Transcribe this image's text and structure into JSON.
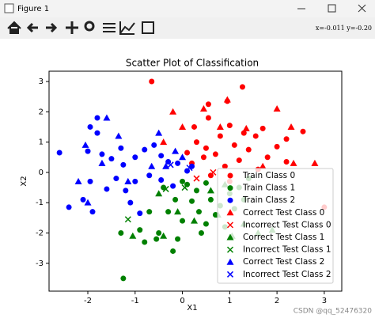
{
  "window_title": "Figure 1",
  "coordinates": "x=-0.011 y=-0.20",
  "watermark": "CSDN @qq_52476320",
  "chart_data": {
    "type": "scatter",
    "title": "Scatter Plot of Classification",
    "x_label": "X1",
    "y_label": "X2",
    "xlim": [
      -2.82,
      3.37
    ],
    "ylim": [
      -3.92,
      3.34
    ],
    "xticks": [
      -2,
      -1,
      0,
      1,
      2,
      3
    ],
    "yticks": [
      -3,
      -2,
      -1,
      0,
      1,
      2,
      3
    ],
    "legend": "lower right",
    "series": [
      {
        "name": "Train Class 0",
        "color": "#ff0000",
        "marker": "o",
        "x": [
          -0.65,
          1.27,
          0.55,
          0.95,
          0.55,
          0.25,
          0.8,
          1.0,
          1.3,
          1.55,
          1.7,
          2.2,
          2.55,
          0.3,
          0.5,
          0.7,
          1.1,
          1.4,
          1.8,
          2.0,
          0.2,
          0.45,
          0.9,
          1.2,
          1.6,
          2.2,
          0.1,
          3.0,
          0.6,
          1.0
        ],
        "y": [
          3.0,
          2.82,
          2.25,
          2.35,
          1.8,
          1.5,
          1.2,
          1.55,
          1.3,
          1.2,
          1.45,
          1.1,
          1.35,
          1.0,
          0.8,
          0.6,
          0.9,
          0.75,
          0.5,
          0.85,
          0.3,
          0.5,
          0.2,
          0.4,
          0.1,
          0.35,
          0.65,
          -1.15,
          -0.1,
          -0.3
        ]
      },
      {
        "name": "Train Class 1",
        "color": "#008000",
        "marker": "o",
        "x": [
          -1.25,
          -1.3,
          -0.9,
          -0.3,
          -0.15,
          0.1,
          0.3,
          0.5,
          0.6,
          0.8,
          1.0,
          0.35,
          0.0,
          -0.5,
          -0.2,
          -0.55,
          0.5,
          0.7,
          1.2,
          1.1,
          0.2,
          -0.4,
          -0.8,
          1.4,
          0.9,
          0.0,
          -0.7,
          -0.1,
          0.4,
          1.3
        ],
        "y": [
          -3.5,
          -2.0,
          -1.9,
          -1.3,
          -0.9,
          -0.4,
          -0.6,
          -0.35,
          -0.9,
          -1.1,
          -0.7,
          -1.3,
          -1.6,
          -2.0,
          -2.6,
          -2.2,
          -1.7,
          -1.4,
          -0.5,
          -1.2,
          -0.95,
          -0.5,
          -2.3,
          -0.2,
          -1.8,
          -0.3,
          -1.3,
          -2.2,
          -2.0,
          -0.9
        ]
      },
      {
        "name": "Train Class 2",
        "color": "#0000ff",
        "marker": "o",
        "x": [
          -2.6,
          -1.8,
          -1.95,
          -1.8,
          -2.0,
          -1.7,
          -1.5,
          -1.3,
          -1.25,
          -1.0,
          -0.8,
          -0.6,
          -0.45,
          -0.3,
          -0.1,
          0.1,
          -1.95,
          -2.1,
          -1.9,
          -2.4,
          -1.6,
          -1.4,
          -1.2,
          -1.0,
          -0.7,
          -0.45,
          -0.9,
          -1.1,
          -0.2,
          0.2
        ],
        "y": [
          0.65,
          1.8,
          1.5,
          1.3,
          0.7,
          0.6,
          0.45,
          0.8,
          0.25,
          0.5,
          0.75,
          0.9,
          0.55,
          0.35,
          0.3,
          0.05,
          -0.3,
          -0.9,
          -1.3,
          -1.15,
          -0.55,
          -0.2,
          -0.6,
          -0.3,
          -0.1,
          -0.25,
          -1.35,
          -1.0,
          -0.45,
          0.2
        ]
      },
      {
        "name": "Correct Test Class 0",
        "color": "#ff0000",
        "marker": "^",
        "x": [
          0.0,
          -0.4,
          0.45,
          0.95,
          1.35,
          2.0,
          2.3,
          2.35,
          2.8,
          -0.2,
          1.7,
          0.8
        ],
        "y": [
          1.5,
          1.0,
          2.1,
          2.4,
          1.45,
          2.1,
          1.5,
          0.3,
          0.3,
          2.0,
          0.2,
          1.5
        ]
      },
      {
        "name": "Incorrect Test Class 0",
        "color": "#ff0000",
        "marker": "x",
        "x": [
          0.65,
          0.3
        ],
        "y": [
          0.0,
          -0.2
        ]
      },
      {
        "name": "Correct Test Class 1",
        "color": "#008000",
        "marker": "^",
        "x": [
          -1.05,
          -0.4,
          -0.1,
          0.6,
          0.9,
          1.3,
          1.9,
          1.05,
          0.25,
          -0.5,
          0.75,
          1.6
        ],
        "y": [
          -2.1,
          -2.1,
          -1.3,
          -0.6,
          -0.4,
          -1.7,
          -1.9,
          -2.1,
          -1.6,
          -0.7,
          -1.4,
          -2.0
        ]
      },
      {
        "name": "Incorrect Test Class 1",
        "color": "#008000",
        "marker": "x",
        "x": [
          -1.15,
          -0.35,
          0.05
        ],
        "y": [
          -1.55,
          -0.55,
          -0.5
        ]
      },
      {
        "name": "Correct Test Class 2",
        "color": "#0000ff",
        "marker": "^",
        "x": [
          -2.05,
          -1.6,
          -1.35,
          -1.7,
          -0.5,
          -0.15,
          -2.0,
          -2.2,
          -1.15,
          -0.65,
          -0.35,
          0.0
        ],
        "y": [
          0.9,
          1.8,
          1.2,
          0.3,
          1.3,
          0.7,
          -1.0,
          -0.3,
          -0.3,
          0.2,
          0.2,
          0.5
        ]
      },
      {
        "name": "Incorrect Test Class 2",
        "color": "#0000ff",
        "marker": "x",
        "x": [
          0.15,
          -0.25
        ],
        "y": [
          0.15,
          0.25
        ]
      }
    ]
  }
}
